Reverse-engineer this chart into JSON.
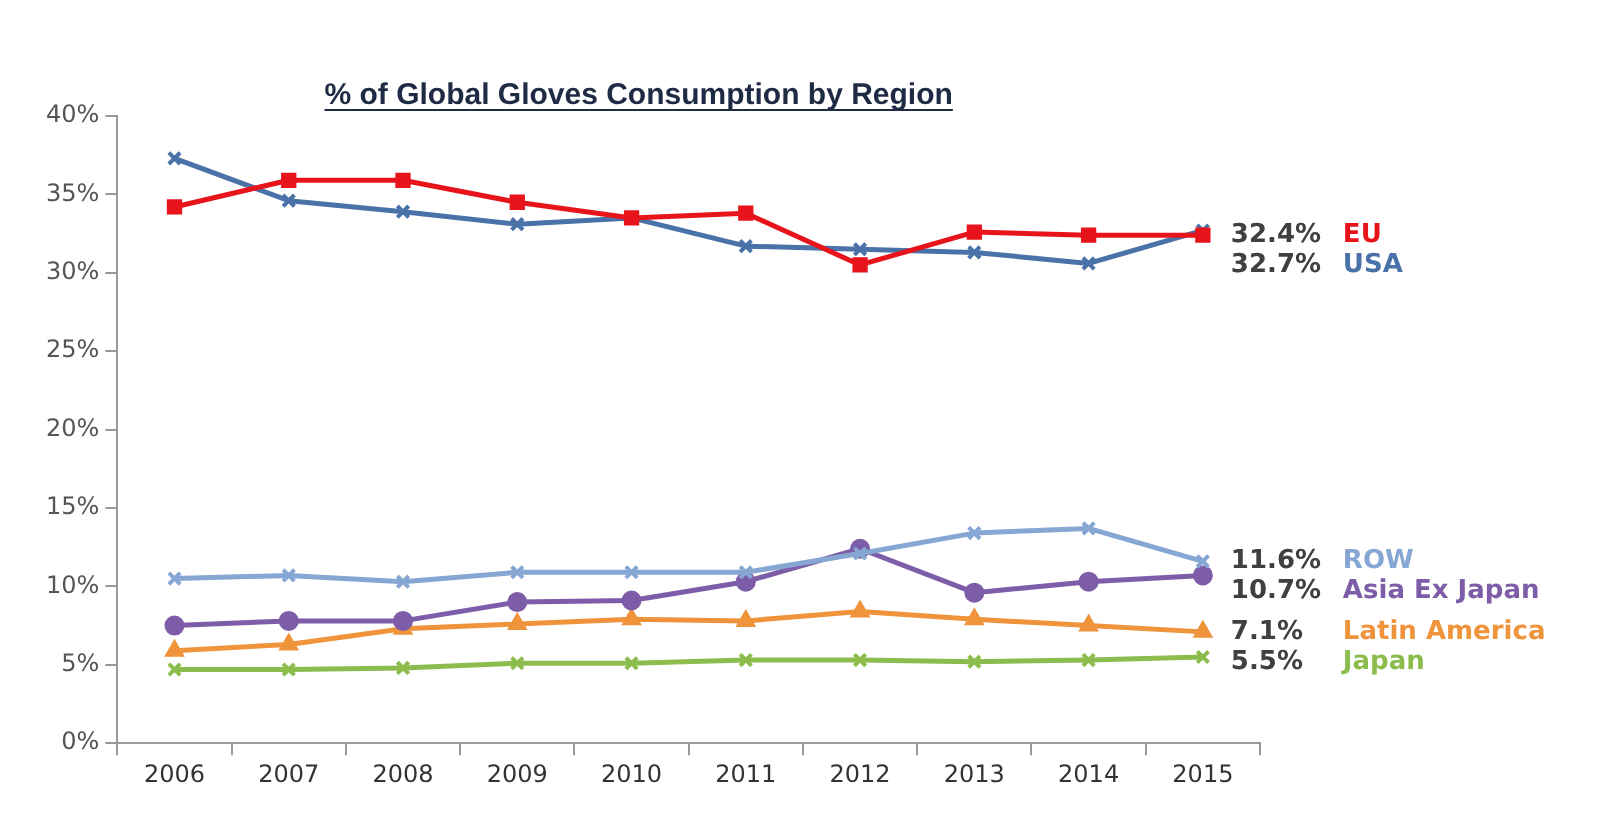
{
  "chart_data": {
    "type": "line",
    "title": "% of Global Gloves Consumption by Region",
    "categories": [
      "2006",
      "2007",
      "2008",
      "2009",
      "2010",
      "2011",
      "2012",
      "2013",
      "2014",
      "2015"
    ],
    "ylim": [
      0,
      40
    ],
    "yticks": [
      {
        "value": 0,
        "label": "0%"
      },
      {
        "value": 5,
        "label": "5%"
      },
      {
        "value": 10,
        "label": "10%"
      },
      {
        "value": 15,
        "label": "15%"
      },
      {
        "value": 20,
        "label": "20%"
      },
      {
        "value": 25,
        "label": "25%"
      },
      {
        "value": 30,
        "label": "30%"
      },
      {
        "value": 35,
        "label": "35%"
      },
      {
        "value": 40,
        "label": "40%"
      }
    ],
    "grid": false,
    "legend": false,
    "line_style": "solid",
    "series": [
      {
        "name": "EU",
        "color": "#e8141c",
        "marker": "square",
        "values": [
          34.2,
          35.9,
          35.9,
          34.5,
          33.5,
          33.8,
          30.5,
          32.6,
          32.4,
          32.4
        ],
        "value_labels": [
          null,
          null,
          null,
          null,
          null,
          null,
          null,
          null,
          null,
          "32.4%"
        ]
      },
      {
        "name": "USA",
        "color": "#4a72a8",
        "marker": "cross",
        "values": [
          37.3,
          34.6,
          33.9,
          33.1,
          33.5,
          31.7,
          31.5,
          31.3,
          30.6,
          32.7
        ],
        "value_labels": [
          null,
          null,
          null,
          null,
          null,
          null,
          null,
          null,
          null,
          "32.7%"
        ]
      },
      {
        "name": "ROW",
        "color": "#86a6d4",
        "marker": "cross",
        "values": [
          10.5,
          10.7,
          10.3,
          10.9,
          10.9,
          10.9,
          12.1,
          13.4,
          13.7,
          11.6
        ],
        "value_labels": [
          null,
          null,
          null,
          null,
          null,
          null,
          null,
          null,
          null,
          "11.6%"
        ]
      },
      {
        "name": "Asia Ex Japan",
        "color": "#7d5ca8",
        "marker": "circle",
        "values": [
          7.5,
          7.8,
          7.8,
          9.0,
          9.1,
          10.3,
          12.4,
          9.6,
          10.3,
          10.7
        ],
        "value_labels": [
          null,
          null,
          null,
          null,
          null,
          null,
          null,
          null,
          null,
          "10.7%"
        ]
      },
      {
        "name": "Latin America",
        "color": "#f0943c",
        "marker": "triangle",
        "values": [
          5.9,
          6.3,
          7.3,
          7.6,
          7.9,
          7.8,
          8.4,
          7.9,
          7.5,
          7.1
        ],
        "value_labels": [
          null,
          null,
          null,
          null,
          null,
          null,
          null,
          null,
          null,
          "7.1%"
        ]
      },
      {
        "name": "Japan",
        "color": "#8cbc4c",
        "marker": "cross",
        "values": [
          4.7,
          4.7,
          4.8,
          5.1,
          5.1,
          5.3,
          5.3,
          5.2,
          5.3,
          5.5
        ],
        "value_labels": [
          null,
          null,
          null,
          null,
          null,
          null,
          null,
          null,
          null,
          "5.5%"
        ]
      }
    ]
  }
}
